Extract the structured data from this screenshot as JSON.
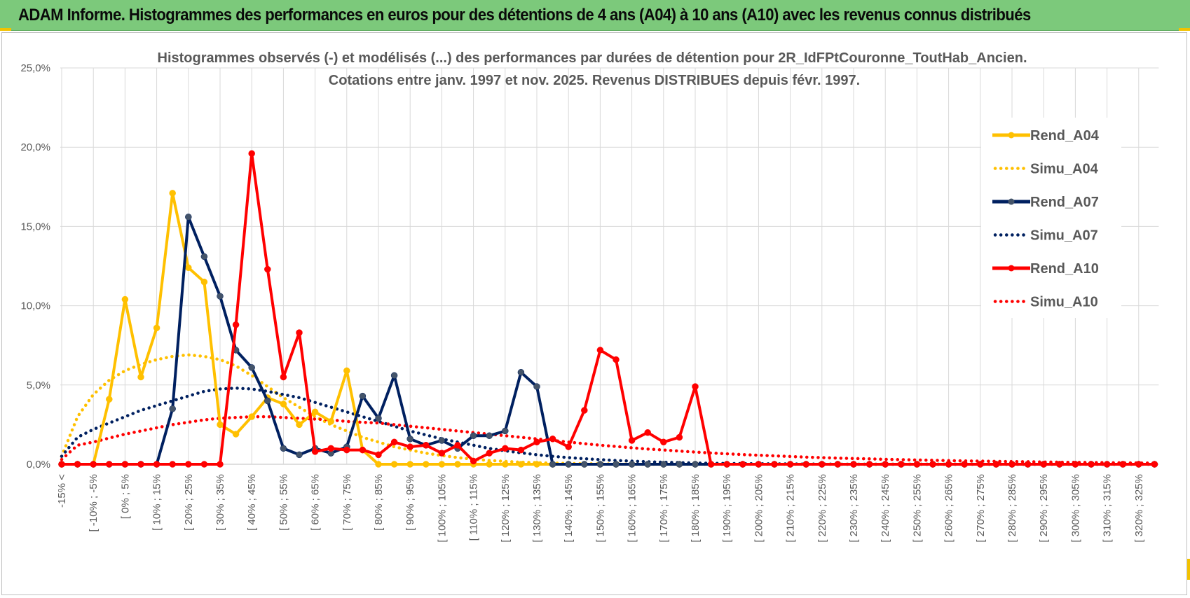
{
  "header": {
    "title": "ADAM Informe. Histogrammes des performances en euros pour des détentions de 4 ans (A04) à 10 ans (A10) avec les revenus connus distribués"
  },
  "chart_data": {
    "type": "line",
    "title": "Histogrammes observés (-) et modélisés (...) des performances par durées de détention pour 2R_IdFPtCouronne_ToutHab_Ancien.",
    "subtitle": "Cotations entre janv. 1997 et nov. 2025. Revenus DISTRIBUES depuis févr. 1997.",
    "xlabel": "",
    "ylabel": "",
    "ylim": [
      0,
      25
    ],
    "y_ticks": [
      "0,0%",
      "5,0%",
      "10,0%",
      "15,0%",
      "20,0%",
      "25,0%"
    ],
    "grid": true,
    "legend_position": "right",
    "x_tick_labels": [
      "-15% <",
      "[ -10% ; -5%",
      "[ 0% ; 5%",
      "[ 10% ; 15%",
      "[ 20% ; 25%",
      "[ 30% ; 35%",
      "[ 40% ; 45%",
      "[ 50% ; 55%",
      "[ 60% ; 65%",
      "[ 70% ; 75%",
      "[ 80% ; 85%",
      "[ 90% ; 95%",
      "[ 100% ; 105%",
      "[ 110% ; 115%",
      "[ 120% ; 125%",
      "[ 130% ; 135%",
      "[ 140% ; 145%",
      "[ 150% ; 155%",
      "[ 160% ; 165%",
      "[ 170% ; 175%",
      "[ 180% ; 185%",
      "[ 190% ; 195%",
      "[ 200% ; 205%",
      "[ 210% ; 215%",
      "[ 220% ; 225%",
      "[ 230% ; 235%",
      "[ 240% ; 245%",
      "[ 250% ; 255%",
      "[ 260% ; 265%",
      "[ 270% ; 275%",
      "[ 280% ; 285%",
      "[ 290% ; 295%",
      "[ 300% ; 305%",
      "[ 310% ; 315%",
      "[ 320% ; 325%"
    ],
    "categories_count": 70,
    "series": [
      {
        "name": "Rend_A04",
        "color": "#ffc000",
        "style": "solid",
        "markers": true,
        "values": [
          0,
          0,
          0,
          4.1,
          10.4,
          5.5,
          8.6,
          17.1,
          12.4,
          11.5,
          2.5,
          1.9,
          3.0,
          4.2,
          3.8,
          2.5,
          3.3,
          2.7,
          5.9,
          0.9,
          0,
          0,
          0,
          0,
          0,
          0,
          0,
          0,
          0,
          0,
          0,
          0,
          0,
          0,
          0,
          0,
          0,
          0,
          0,
          0,
          0,
          0,
          0,
          0,
          0,
          0,
          0,
          0,
          0,
          0,
          0,
          0,
          0,
          0,
          0,
          0,
          0,
          0,
          0,
          0,
          0,
          0,
          0,
          0,
          0,
          0,
          0,
          0,
          0,
          0
        ]
      },
      {
        "name": "Simu_A04",
        "color": "#ffc000",
        "style": "dotted",
        "markers": false,
        "values": [
          0.5,
          3.0,
          4.4,
          5.3,
          5.9,
          6.3,
          6.6,
          6.8,
          6.9,
          6.8,
          6.6,
          6.2,
          5.6,
          4.9,
          4.2,
          3.6,
          3.0,
          2.5,
          2.1,
          1.7,
          1.4,
          1.1,
          0.9,
          0.7,
          0.55,
          0.42,
          0.32,
          0.24,
          0.18,
          0.13,
          0.1,
          0.07,
          0.05,
          0.03,
          0.02,
          0.01,
          0,
          0,
          0,
          0,
          0,
          0,
          0,
          0,
          0,
          0,
          0,
          0,
          0,
          0,
          0,
          0,
          0,
          0,
          0,
          0,
          0,
          0,
          0,
          0,
          0,
          0,
          0,
          0,
          0,
          0,
          0,
          0,
          0,
          0
        ]
      },
      {
        "name": "Rend_A07",
        "color": "#002060",
        "style": "solid",
        "markers": true,
        "values": [
          0,
          0,
          0,
          0,
          0,
          0,
          0,
          3.5,
          15.6,
          13.1,
          10.6,
          7.2,
          6.1,
          4.0,
          1.0,
          0.6,
          1.0,
          0.7,
          1.1,
          4.3,
          2.9,
          5.6,
          1.6,
          1.2,
          1.5,
          1.0,
          1.8,
          1.8,
          2.1,
          5.8,
          4.9,
          0,
          0,
          0,
          0,
          0,
          0,
          0,
          0,
          0,
          0,
          0,
          0,
          0,
          0,
          0,
          0,
          0,
          0,
          0,
          0,
          0,
          0,
          0,
          0,
          0,
          0,
          0,
          0,
          0,
          0,
          0,
          0,
          0,
          0,
          0,
          0,
          0,
          0,
          0
        ]
      },
      {
        "name": "Simu_A07",
        "color": "#002060",
        "style": "dotted",
        "markers": false,
        "values": [
          0.5,
          1.7,
          2.2,
          2.6,
          3.0,
          3.4,
          3.7,
          4.0,
          4.3,
          4.6,
          4.75,
          4.8,
          4.75,
          4.6,
          4.4,
          4.2,
          3.9,
          3.6,
          3.3,
          3.0,
          2.7,
          2.4,
          2.1,
          1.85,
          1.6,
          1.4,
          1.2,
          1.0,
          0.85,
          0.72,
          0.6,
          0.5,
          0.42,
          0.35,
          0.29,
          0.24,
          0.2,
          0.16,
          0.13,
          0.1,
          0.08,
          0.06,
          0.05,
          0.04,
          0.03,
          0.02,
          0.02,
          0.01,
          0.01,
          0,
          0,
          0,
          0,
          0,
          0,
          0,
          0,
          0,
          0,
          0,
          0,
          0,
          0,
          0,
          0,
          0,
          0,
          0,
          0,
          0
        ]
      },
      {
        "name": "Rend_A10",
        "color": "#ff0000",
        "style": "solid",
        "markers": true,
        "values": [
          0,
          0,
          0,
          0,
          0,
          0,
          0,
          0,
          0,
          0,
          0,
          8.8,
          19.6,
          12.3,
          5.5,
          8.3,
          0.8,
          1.0,
          0.9,
          0.9,
          0.6,
          1.4,
          1.1,
          1.2,
          0.7,
          1.2,
          0.2,
          0.7,
          1.0,
          0.9,
          1.4,
          1.6,
          1.1,
          3.4,
          7.2,
          6.6,
          1.5,
          2.0,
          1.4,
          1.7,
          4.9,
          0,
          0,
          0,
          0,
          0,
          0,
          0,
          0,
          0,
          0,
          0,
          0,
          0,
          0,
          0,
          0,
          0,
          0,
          0,
          0,
          0,
          0,
          0,
          0,
          0,
          0,
          0,
          0,
          0
        ]
      },
      {
        "name": "Simu_A10",
        "color": "#ff0000",
        "style": "dotted",
        "markers": false,
        "values": [
          0.3,
          1.2,
          1.4,
          1.65,
          1.9,
          2.1,
          2.3,
          2.5,
          2.65,
          2.8,
          2.9,
          2.95,
          3.0,
          3.0,
          2.95,
          2.9,
          2.85,
          2.8,
          2.7,
          2.65,
          2.6,
          2.5,
          2.4,
          2.3,
          2.2,
          2.1,
          2.0,
          1.9,
          1.8,
          1.7,
          1.6,
          1.5,
          1.4,
          1.3,
          1.2,
          1.12,
          1.04,
          0.96,
          0.9,
          0.83,
          0.77,
          0.71,
          0.66,
          0.61,
          0.57,
          0.53,
          0.49,
          0.45,
          0.42,
          0.39,
          0.36,
          0.34,
          0.31,
          0.29,
          0.27,
          0.25,
          0.23,
          0.21,
          0.2,
          0.18,
          0.17,
          0.16,
          0.14,
          0.13,
          0.12,
          0.11,
          0.1,
          0.09,
          0.08,
          0.07
        ]
      }
    ]
  }
}
